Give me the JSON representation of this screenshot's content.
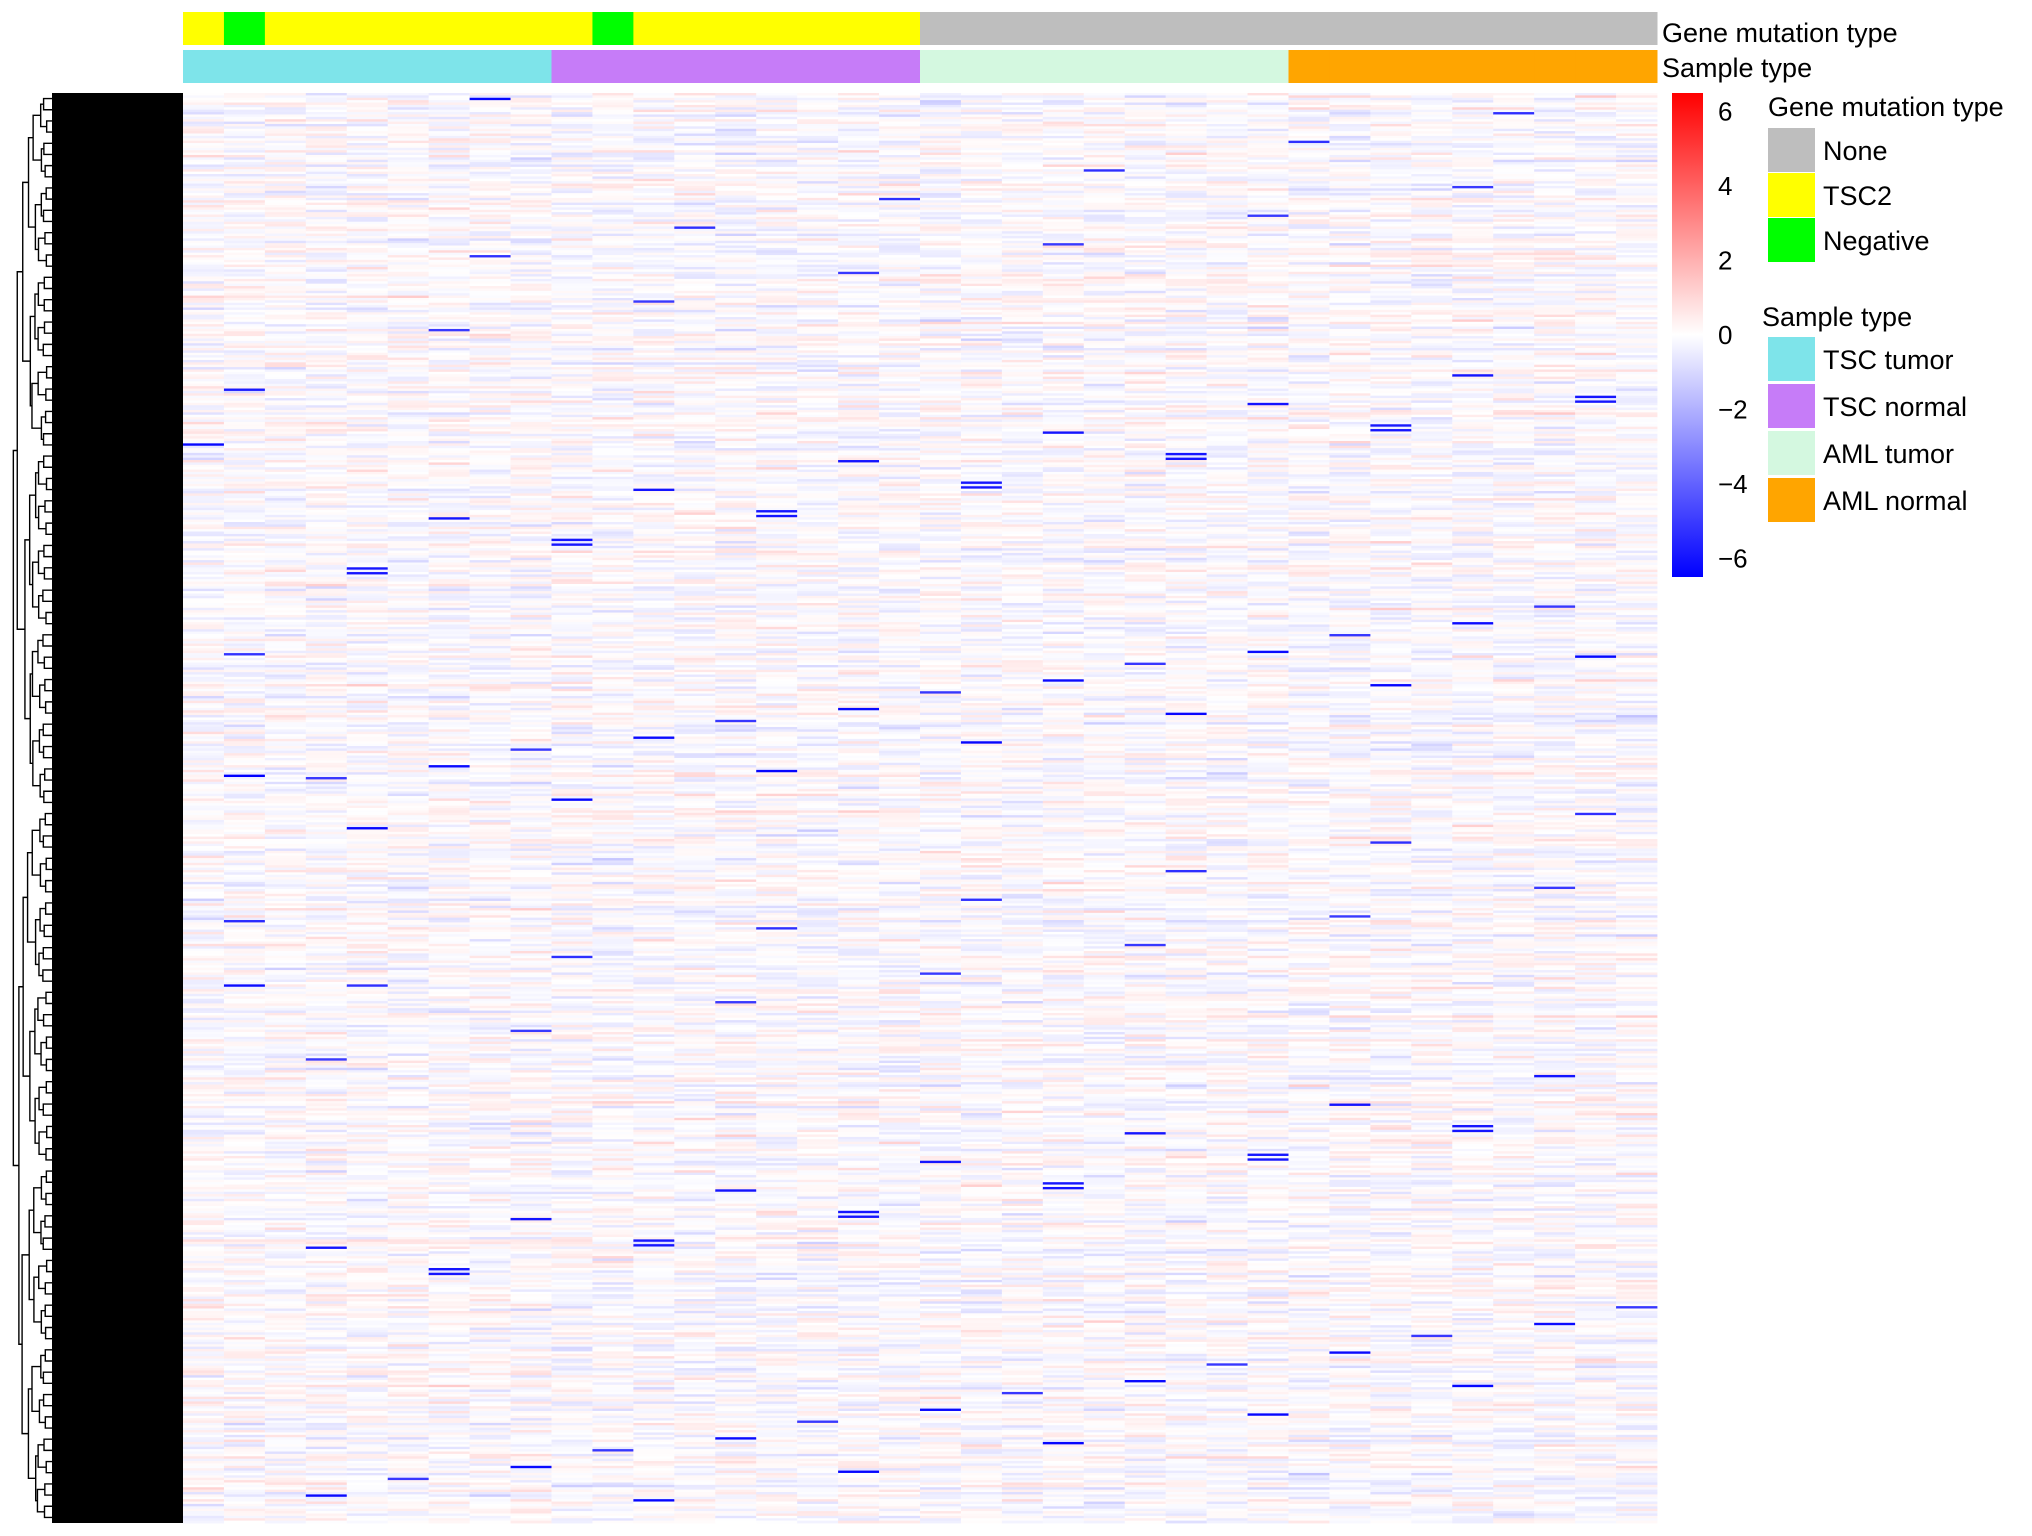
{
  "chart_data": {
    "type": "heatmap",
    "title": "",
    "xlabel": "",
    "ylabel": "",
    "columns": 36,
    "rows": 600,
    "value_range": [
      -6.5,
      6.5
    ],
    "row_dendrogram": true,
    "annotations": {
      "gene_mutation_type": {
        "label": "Gene mutation type",
        "per_column": [
          "TSC2",
          "Negative",
          "TSC2",
          "TSC2",
          "TSC2",
          "TSC2",
          "TSC2",
          "TSC2",
          "TSC2",
          "TSC2",
          "Negative",
          "TSC2",
          "TSC2",
          "TSC2",
          "TSC2",
          "TSC2",
          "TSC2",
          "TSC2",
          "None",
          "None",
          "None",
          "None",
          "None",
          "None",
          "None",
          "None",
          "None",
          "None",
          "None",
          "None",
          "None",
          "None",
          "None",
          "None",
          "None",
          "None"
        ]
      },
      "sample_type": {
        "label": "Sample type",
        "per_column": [
          "TSC tumor",
          "TSC tumor",
          "TSC tumor",
          "TSC tumor",
          "TSC tumor",
          "TSC tumor",
          "TSC tumor",
          "TSC tumor",
          "TSC tumor",
          "TSC normal",
          "TSC normal",
          "TSC normal",
          "TSC normal",
          "TSC normal",
          "TSC normal",
          "TSC normal",
          "TSC normal",
          "TSC normal",
          "AML tumor",
          "AML tumor",
          "AML tumor",
          "AML tumor",
          "AML tumor",
          "AML tumor",
          "AML tumor",
          "AML tumor",
          "AML tumor",
          "AML normal",
          "AML normal",
          "AML normal",
          "AML normal",
          "AML normal",
          "AML normal",
          "AML normal",
          "AML normal",
          "AML normal"
        ]
      }
    },
    "color_scale": {
      "low": "#0000ff",
      "mid": "#ffffff",
      "high": "#ff0000",
      "ticks": [
        6,
        4,
        2,
        0,
        -2,
        -4,
        -6
      ],
      "tick_labels": [
        "6",
        "4",
        "2",
        "0",
        "−2",
        "−4",
        "−6"
      ]
    },
    "legend": {
      "placement": "right",
      "gene_mutation_type": {
        "title": "Gene mutation type",
        "entries": [
          {
            "name": "None",
            "color": "#bebebe"
          },
          {
            "name": "TSC2",
            "color": "#ffff00"
          },
          {
            "name": "Negative",
            "color": "#00ff00"
          }
        ]
      },
      "sample_type": {
        "title": "Sample type",
        "entries": [
          {
            "name": "TSC tumor",
            "color": "#7ee4ea"
          },
          {
            "name": "TSC normal",
            "color": "#c67cf8"
          },
          {
            "name": "AML tumor",
            "color": "#d4f8e0"
          },
          {
            "name": "AML normal",
            "color": "#ffa500"
          }
        ]
      }
    }
  }
}
